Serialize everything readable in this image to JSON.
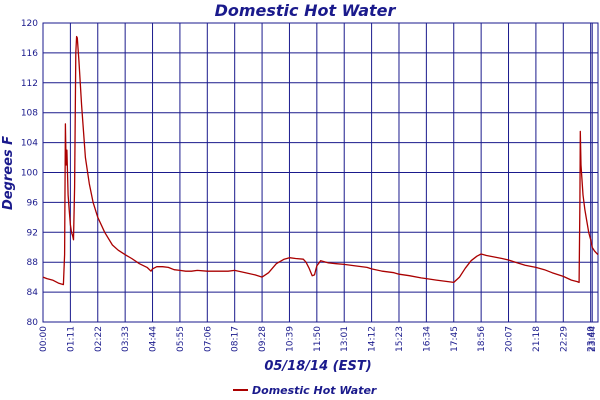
{
  "chart_data": {
    "type": "line",
    "title": "Domestic Hot Water",
    "xlabel": "05/18/14 (EST)",
    "ylabel": "Degrees F",
    "ylim": [
      80,
      120
    ],
    "yticks": [
      80,
      84,
      88,
      92,
      96,
      100,
      104,
      108,
      112,
      116,
      120
    ],
    "xlim": [
      "00:00",
      "23:59"
    ],
    "xticks": [
      "00:00",
      "01:11",
      "02:22",
      "03:33",
      "04:44",
      "05:55",
      "07:06",
      "08:17",
      "09:28",
      "10:39",
      "11:50",
      "13:01",
      "14:12",
      "15:23",
      "16:34",
      "17:45",
      "18:56",
      "20:07",
      "21:18",
      "22:29",
      "23:40",
      "23:44"
    ],
    "grid": true,
    "legend": "bottom-center",
    "colors": {
      "series": "#aa0000",
      "grid": "#1a1a8c",
      "text": "#1a1a8c"
    },
    "series": [
      {
        "name": "Domestic Hot Water",
        "points": [
          [
            "00:00",
            86.0
          ],
          [
            "00:10",
            85.8
          ],
          [
            "00:25",
            85.6
          ],
          [
            "00:40",
            85.2
          ],
          [
            "00:53",
            85.0
          ],
          [
            "00:56",
            89.0
          ],
          [
            "00:58",
            106.5
          ],
          [
            "01:00",
            101.0
          ],
          [
            "01:02",
            103.0
          ],
          [
            "01:05",
            97.0
          ],
          [
            "01:08",
            95.0
          ],
          [
            "01:11",
            93.0
          ],
          [
            "01:14",
            92.0
          ],
          [
            "01:17",
            91.5
          ],
          [
            "01:19",
            91.0
          ],
          [
            "01:22",
            98.0
          ],
          [
            "01:25",
            116.0
          ],
          [
            "01:27",
            118.2
          ],
          [
            "01:29",
            118.0
          ],
          [
            "01:33",
            115.0
          ],
          [
            "01:40",
            109.0
          ],
          [
            "01:50",
            102.0
          ],
          [
            "02:00",
            98.5
          ],
          [
            "02:10",
            96.0
          ],
          [
            "02:22",
            94.0
          ],
          [
            "02:40",
            92.0
          ],
          [
            "03:00",
            90.3
          ],
          [
            "03:15",
            89.6
          ],
          [
            "03:33",
            89.0
          ],
          [
            "03:50",
            88.5
          ],
          [
            "04:10",
            87.8
          ],
          [
            "04:30",
            87.3
          ],
          [
            "04:40",
            86.8
          ],
          [
            "04:44",
            87.1
          ],
          [
            "04:55",
            87.4
          ],
          [
            "05:10",
            87.4
          ],
          [
            "05:25",
            87.3
          ],
          [
            "05:40",
            87.0
          ],
          [
            "05:55",
            86.9
          ],
          [
            "06:10",
            86.8
          ],
          [
            "06:25",
            86.8
          ],
          [
            "06:40",
            86.9
          ],
          [
            "07:06",
            86.8
          ],
          [
            "07:30",
            86.8
          ],
          [
            "08:00",
            86.8
          ],
          [
            "08:17",
            86.9
          ],
          [
            "08:45",
            86.6
          ],
          [
            "09:10",
            86.3
          ],
          [
            "09:28",
            86.0
          ],
          [
            "09:45",
            86.6
          ],
          [
            "10:05",
            87.8
          ],
          [
            "10:25",
            88.4
          ],
          [
            "10:39",
            88.6
          ],
          [
            "10:55",
            88.5
          ],
          [
            "11:15",
            88.4
          ],
          [
            "11:22",
            88.0
          ],
          [
            "11:30",
            87.2
          ],
          [
            "11:38",
            86.2
          ],
          [
            "11:44",
            86.3
          ],
          [
            "11:50",
            87.5
          ],
          [
            "12:00",
            88.2
          ],
          [
            "12:20",
            87.9
          ],
          [
            "12:40",
            87.8
          ],
          [
            "13:01",
            87.7
          ],
          [
            "13:30",
            87.5
          ],
          [
            "14:00",
            87.3
          ],
          [
            "14:12",
            87.1
          ],
          [
            "14:40",
            86.8
          ],
          [
            "15:10",
            86.6
          ],
          [
            "15:23",
            86.4
          ],
          [
            "15:50",
            86.2
          ],
          [
            "16:20",
            85.9
          ],
          [
            "16:34",
            85.8
          ],
          [
            "17:00",
            85.6
          ],
          [
            "17:30",
            85.4
          ],
          [
            "17:45",
            85.3
          ],
          [
            "18:00",
            86.0
          ],
          [
            "18:15",
            87.2
          ],
          [
            "18:30",
            88.2
          ],
          [
            "18:45",
            88.8
          ],
          [
            "18:56",
            89.1
          ],
          [
            "19:10",
            88.9
          ],
          [
            "19:30",
            88.7
          ],
          [
            "19:50",
            88.5
          ],
          [
            "20:07",
            88.3
          ],
          [
            "20:30",
            87.9
          ],
          [
            "20:50",
            87.6
          ],
          [
            "21:18",
            87.3
          ],
          [
            "21:40",
            87.0
          ],
          [
            "22:00",
            86.6
          ],
          [
            "22:29",
            86.1
          ],
          [
            "22:50",
            85.6
          ],
          [
            "23:05",
            85.4
          ],
          [
            "23:10",
            85.3
          ],
          [
            "23:12",
            96.0
          ],
          [
            "23:13",
            105.5
          ],
          [
            "23:15",
            101.0
          ],
          [
            "23:20",
            97.0
          ],
          [
            "23:25",
            95.0
          ],
          [
            "23:30",
            93.5
          ],
          [
            "23:35",
            92.0
          ],
          [
            "23:40",
            91.0
          ],
          [
            "23:44",
            90.0
          ],
          [
            "23:50",
            89.5
          ],
          [
            "23:59",
            89.0
          ]
        ]
      }
    ]
  }
}
